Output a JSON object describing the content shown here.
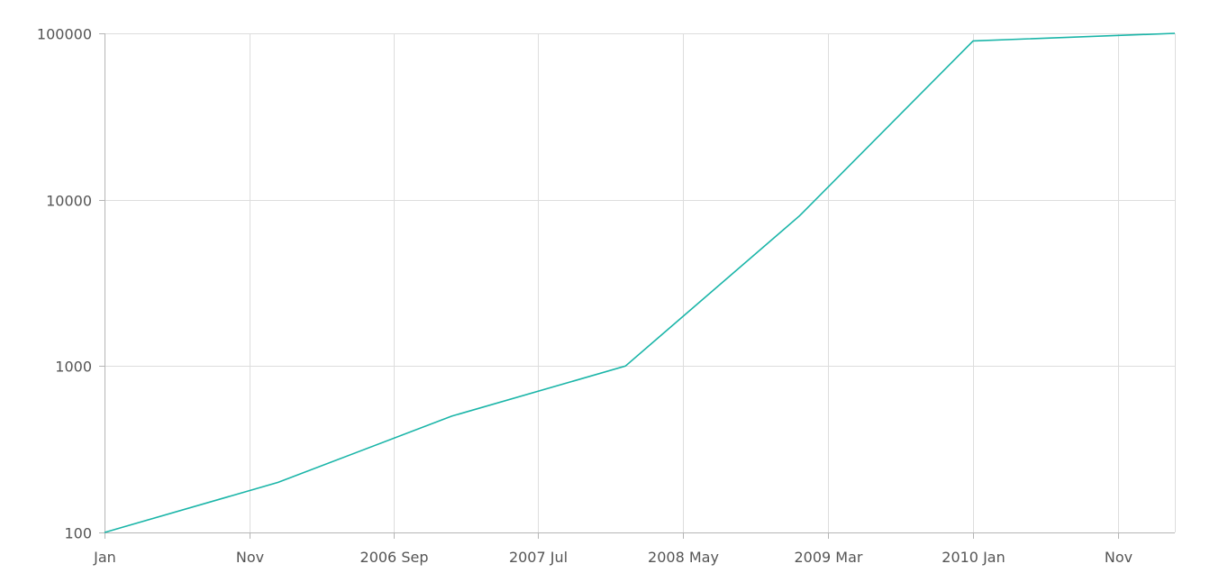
{
  "chart_data": {
    "type": "line",
    "title": "",
    "xlabel": "",
    "ylabel": "",
    "y_scale": "log",
    "ylim": [
      100,
      100000
    ],
    "xlim": [
      "2005-01-01",
      "2011-03-01"
    ],
    "grid": true,
    "x_ticks": [
      {
        "value": "2005-01-01",
        "label": "Jan"
      },
      {
        "value": "2005-11-01",
        "label": "Nov"
      },
      {
        "value": "2006-09-01",
        "label": "2006 Sep"
      },
      {
        "value": "2007-07-01",
        "label": "2007 Jul"
      },
      {
        "value": "2008-05-01",
        "label": "2008 May"
      },
      {
        "value": "2009-03-01",
        "label": "2009 Mar"
      },
      {
        "value": "2010-01-01",
        "label": "2010 Jan"
      },
      {
        "value": "2010-11-01",
        "label": "Nov"
      }
    ],
    "y_ticks": [
      {
        "value": 100,
        "label": "100"
      },
      {
        "value": 1000,
        "label": "1000"
      },
      {
        "value": 10000,
        "label": "10000"
      },
      {
        "value": 100000,
        "label": "100000"
      }
    ],
    "series": [
      {
        "color": "#1ab5a8",
        "points": [
          {
            "x": "2005-01-01",
            "y": 100
          },
          {
            "x": "2006-01-01",
            "y": 200
          },
          {
            "x": "2007-01-01",
            "y": 500
          },
          {
            "x": "2008-01-01",
            "y": 1000
          },
          {
            "x": "2009-01-01",
            "y": 8000
          },
          {
            "x": "2010-01-01",
            "y": 90000
          },
          {
            "x": "2011-03-01",
            "y": 100000
          }
        ]
      }
    ]
  }
}
